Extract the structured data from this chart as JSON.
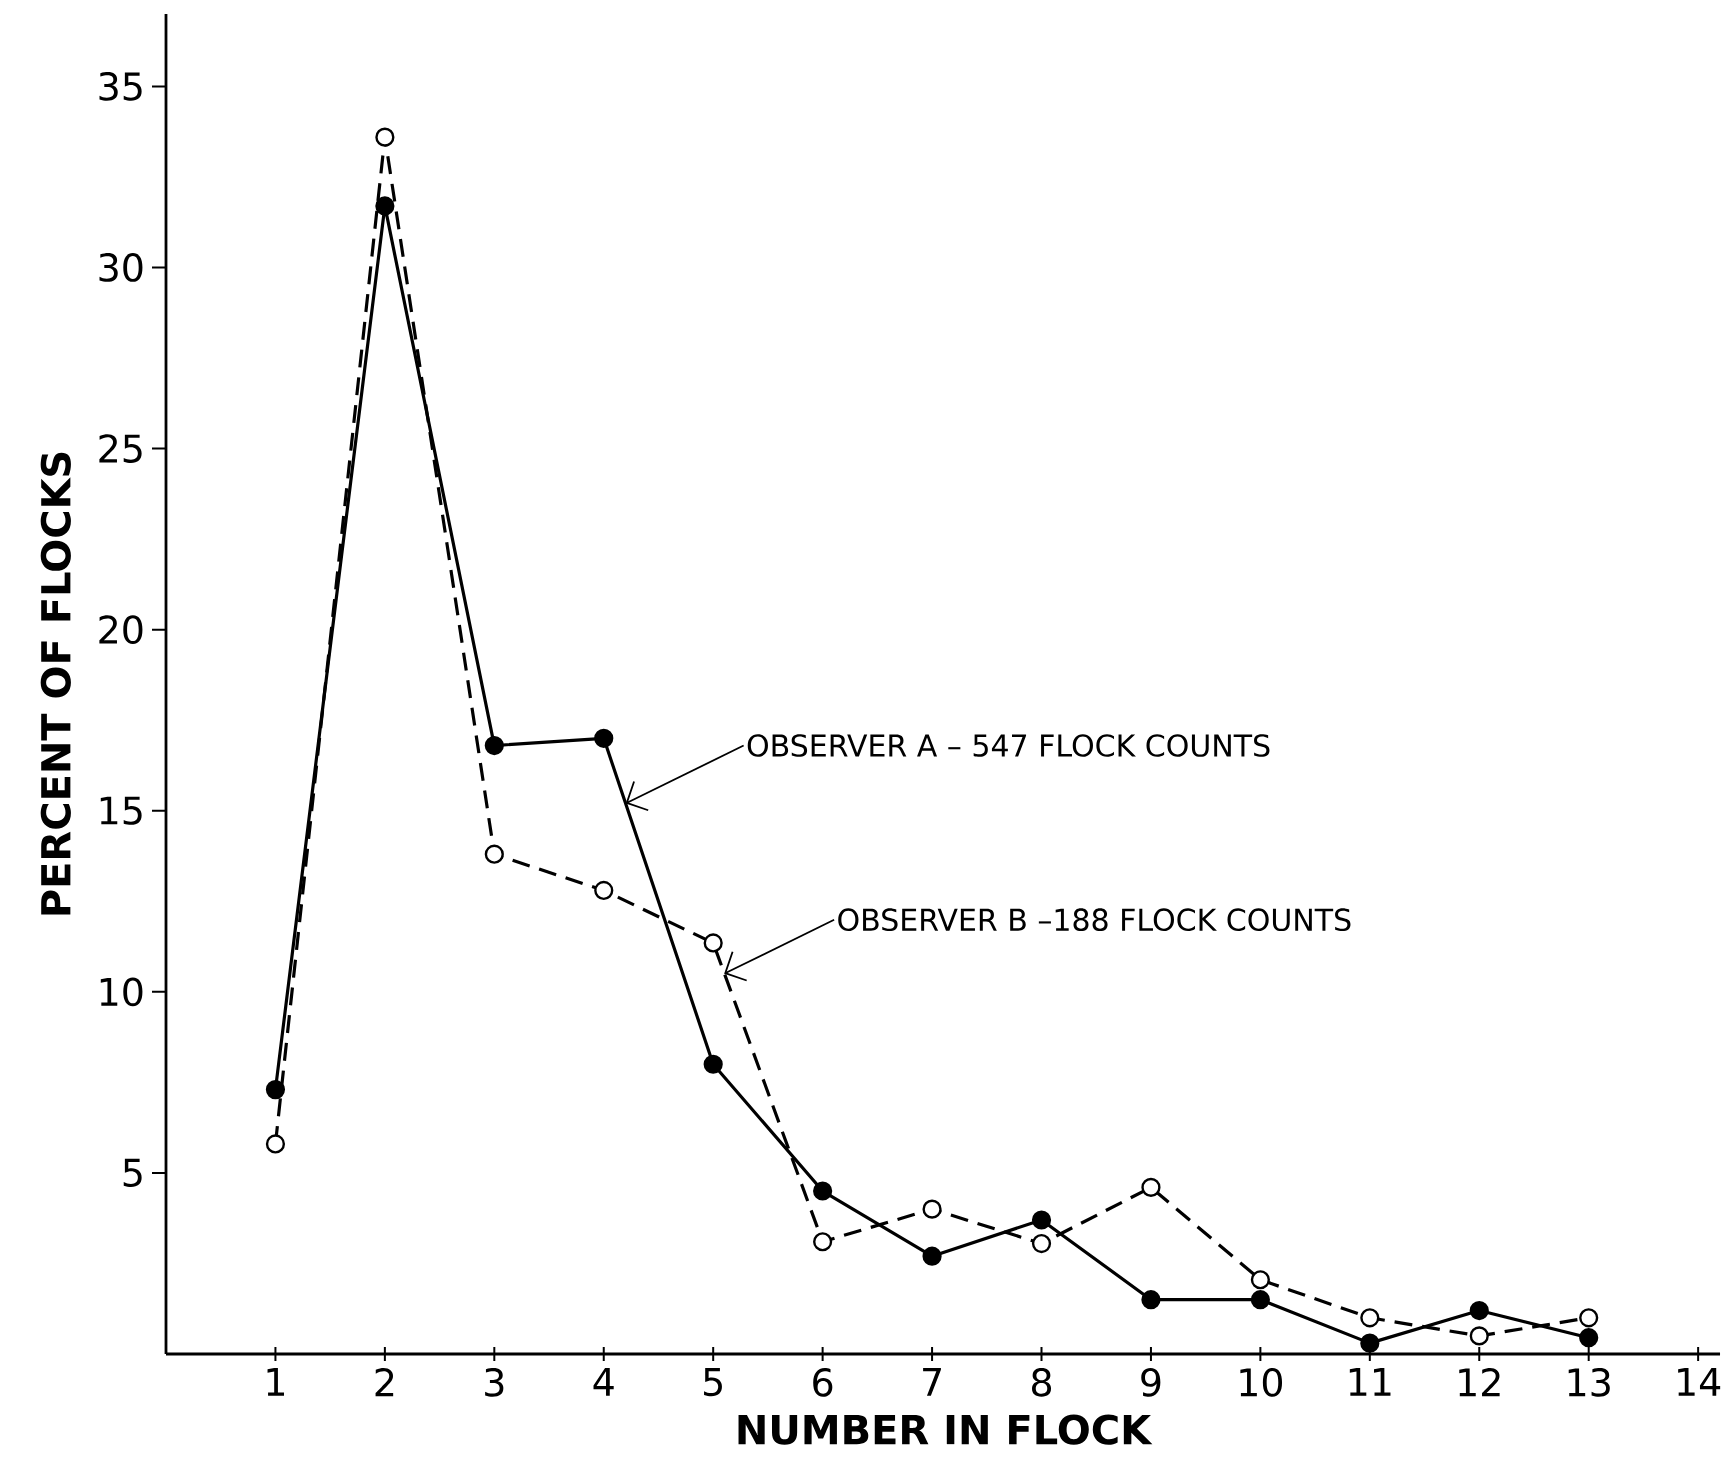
{
  "chart_data": {
    "type": "line",
    "xlabel": "NUMBER IN FLOCK",
    "ylabel": "PERCENT OF FLOCKS",
    "x": [
      1,
      2,
      3,
      4,
      5,
      6,
      7,
      8,
      9,
      10,
      11,
      12,
      13
    ],
    "series": [
      {
        "color": "#000000",
        "line_style": "solid",
        "values": [
          7.3,
          31.7,
          16.8,
          17.0,
          8.0,
          4.5,
          2.7,
          3.7,
          1.5,
          1.5,
          0.3,
          1.2,
          0.45
        ]
      },
      {
        "color": "#000000",
        "line_style": "dashed",
        "values": [
          5.8,
          33.6,
          13.8,
          12.8,
          11.35,
          3.1,
          4.0,
          3.05,
          4.6,
          2.05,
          1.0,
          0.5,
          1.0
        ]
      }
    ],
    "annotations": [
      {
        "text": "OBSERVER A – 547 FLOCK COUNTS",
        "x": 4.2,
        "y": 15.2
      },
      {
        "text": "OBSERVER B –188 FLOCK COUNTS",
        "x": 5.1,
        "y": 10.5
      }
    ],
    "marker": "circle",
    "grid": false,
    "xlim": [
      0,
      14.2
    ],
    "xticks": [
      1,
      2,
      3,
      4,
      5,
      6,
      7,
      8,
      9,
      10,
      11,
      12,
      13,
      14
    ],
    "ylim": [
      0,
      37
    ],
    "yticks": [
      5,
      10,
      15,
      20,
      25,
      30,
      35
    ]
  }
}
